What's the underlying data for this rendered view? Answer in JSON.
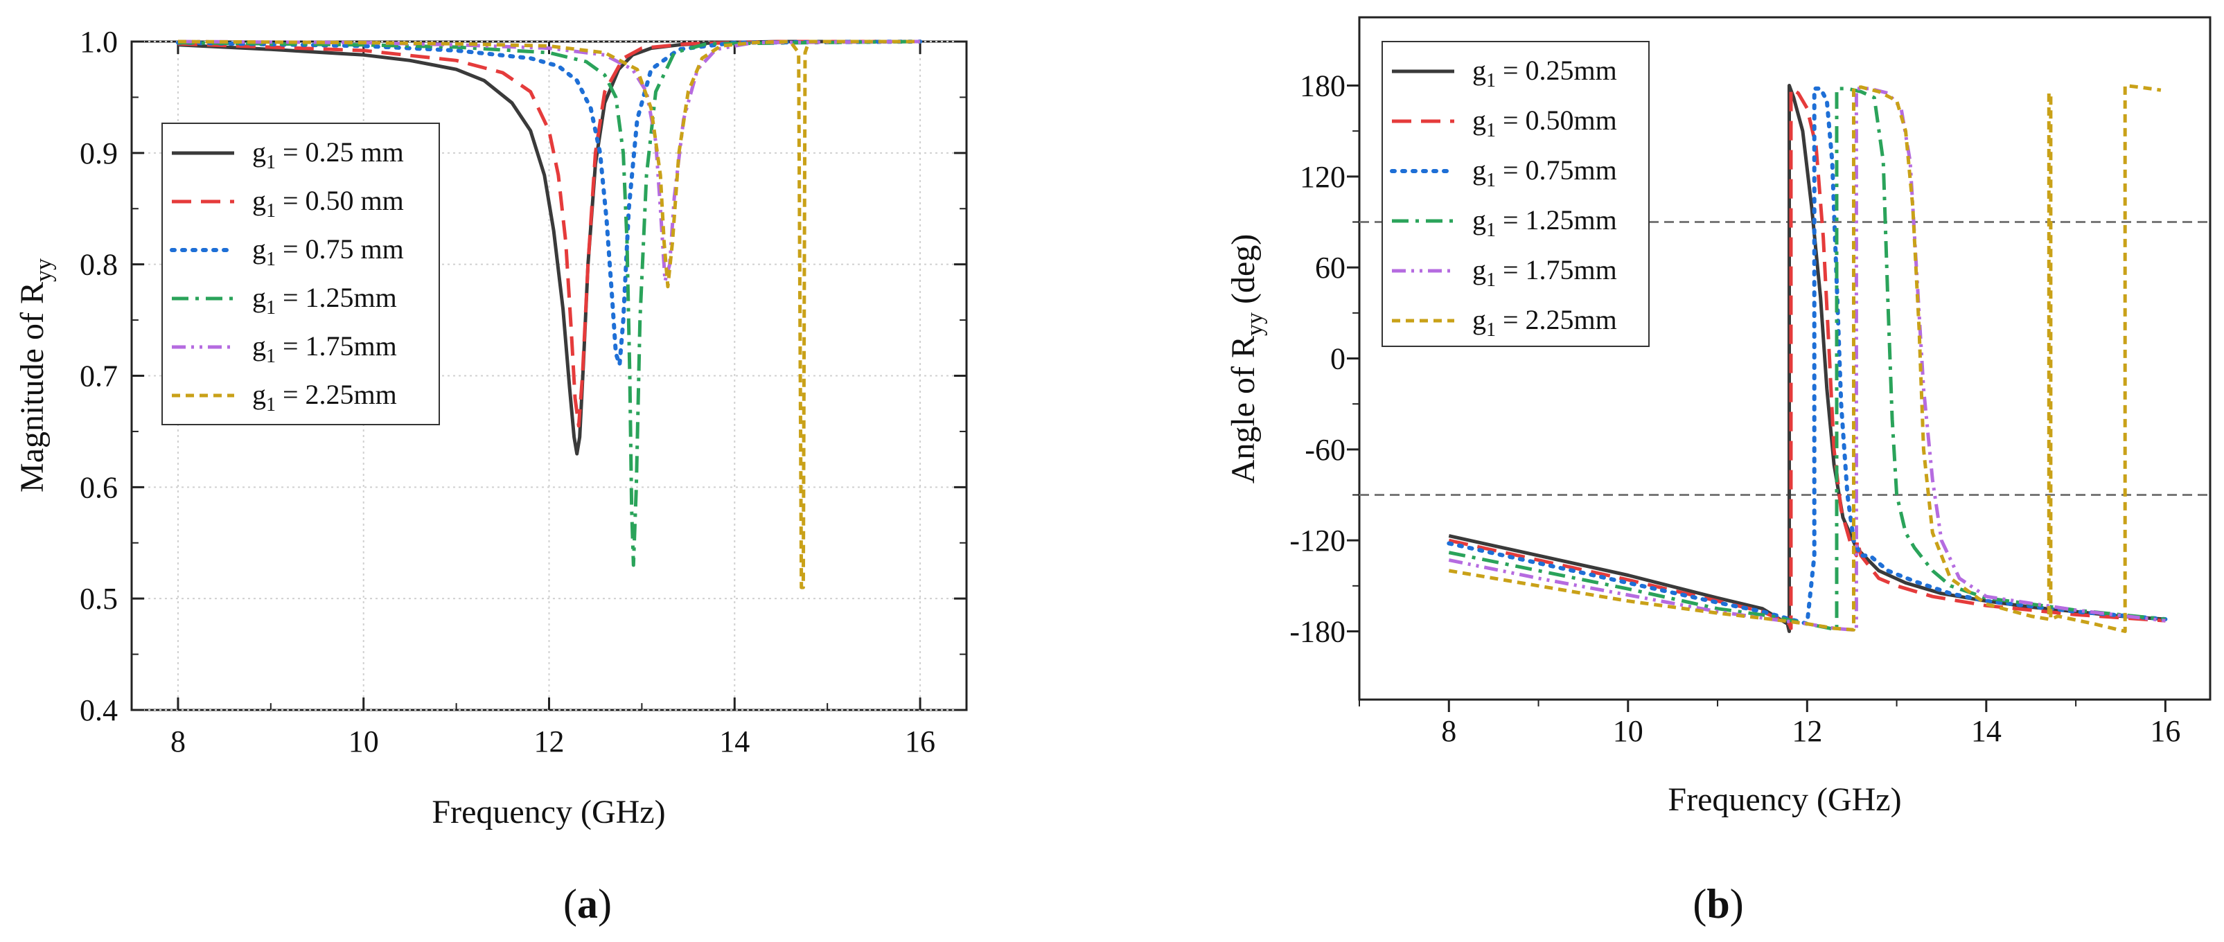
{
  "chart_data": [
    {
      "type": "line",
      "panel_label": "a",
      "xlabel": "Frequency (GHz)",
      "ylabel_main": "Magnitude of R",
      "ylabel_sub": "yy",
      "xlim": [
        7.5,
        16.5
      ],
      "ylim": [
        0.4,
        1.0
      ],
      "xticks": [
        8,
        10,
        12,
        14,
        16
      ],
      "yticks": [
        0.4,
        0.5,
        0.6,
        0.7,
        0.8,
        0.9,
        1.0
      ],
      "ytick_labels": [
        "0.4",
        "0.5",
        "0.6",
        "0.7",
        "0.8",
        "0.9",
        "1.0"
      ],
      "grid": true,
      "legend_position": "center-left",
      "series": [
        {
          "name": "g1 = 0.25 mm",
          "legend_main": "g",
          "legend_sub": "1",
          "legend_rest": " = 0.25 mm",
          "color": "#3a3a3a",
          "style": "solid",
          "x": [
            8,
            9,
            10,
            10.5,
            11,
            11.3,
            11.6,
            11.8,
            11.95,
            12.05,
            12.15,
            12.22,
            12.27,
            12.3,
            12.33,
            12.37,
            12.42,
            12.5,
            12.6,
            12.75,
            12.9,
            13.1,
            13.4,
            13.8,
            14.5,
            16
          ],
          "y": [
            0.997,
            0.993,
            0.988,
            0.983,
            0.975,
            0.965,
            0.945,
            0.92,
            0.88,
            0.83,
            0.76,
            0.69,
            0.645,
            0.63,
            0.645,
            0.71,
            0.8,
            0.89,
            0.945,
            0.975,
            0.988,
            0.994,
            0.997,
            0.999,
            1.0,
            1.0
          ]
        },
        {
          "name": "g1 = 0.50 mm",
          "legend_main": "g",
          "legend_sub": "1",
          "legend_rest": " = 0.50 mm",
          "color": "#e53b3b",
          "style": "dash",
          "x": [
            8,
            10,
            11,
            11.5,
            11.8,
            12.0,
            12.1,
            12.18,
            12.24,
            12.28,
            12.32,
            12.36,
            12.42,
            12.5,
            12.6,
            12.8,
            13.0,
            13.5,
            14.5,
            16
          ],
          "y": [
            0.998,
            0.992,
            0.983,
            0.972,
            0.955,
            0.92,
            0.88,
            0.82,
            0.74,
            0.68,
            0.655,
            0.7,
            0.8,
            0.9,
            0.955,
            0.985,
            0.994,
            0.998,
            1.0,
            1.0
          ]
        },
        {
          "name": "g1 = 0.75 mm",
          "legend_main": "g",
          "legend_sub": "1",
          "legend_rest": " = 0.75 mm",
          "color": "#1e6fd6",
          "style": "dot",
          "x": [
            8,
            10,
            11,
            11.8,
            12.1,
            12.3,
            12.45,
            12.55,
            12.62,
            12.68,
            12.72,
            12.76,
            12.8,
            12.86,
            12.95,
            13.1,
            13.4,
            14,
            16
          ],
          "y": [
            0.999,
            0.996,
            0.992,
            0.985,
            0.978,
            0.965,
            0.94,
            0.9,
            0.84,
            0.77,
            0.72,
            0.71,
            0.75,
            0.85,
            0.93,
            0.975,
            0.993,
            0.999,
            1.0
          ]
        },
        {
          "name": "g1 = 1.25mm",
          "legend_main": "g",
          "legend_sub": "1",
          "legend_rest": " = 1.25mm",
          "color": "#2aa35a",
          "style": "dashdot",
          "x": [
            8,
            10,
            11,
            12,
            12.4,
            12.6,
            12.72,
            12.8,
            12.84,
            12.87,
            12.89,
            12.91,
            12.94,
            12.98,
            13.05,
            13.15,
            13.35,
            13.7,
            16
          ],
          "y": [
            0.999,
            0.997,
            0.995,
            0.99,
            0.982,
            0.97,
            0.95,
            0.9,
            0.82,
            0.7,
            0.58,
            0.53,
            0.6,
            0.75,
            0.88,
            0.955,
            0.99,
            0.998,
            1.0
          ]
        },
        {
          "name": "g1 = 1.75mm",
          "legend_main": "g",
          "legend_sub": "1",
          "legend_rest": " = 1.75mm",
          "color": "#b56be0",
          "style": "dashdotdot",
          "x": [
            8,
            10,
            11,
            12,
            12.6,
            12.9,
            13.05,
            13.15,
            13.2,
            13.25,
            13.3,
            13.35,
            13.45,
            13.6,
            13.8,
            14.2,
            16
          ],
          "y": [
            1.0,
            0.999,
            0.997,
            0.994,
            0.988,
            0.975,
            0.955,
            0.91,
            0.85,
            0.785,
            0.8,
            0.86,
            0.93,
            0.975,
            0.993,
            0.999,
            1.0
          ]
        },
        {
          "name": "g1 = 2.25mm",
          "legend_main": "g",
          "legend_sub": "1",
          "legend_rest": " = 2.25mm",
          "color": "#c9a118",
          "style": "shortdash",
          "x": [
            8,
            10,
            11,
            12,
            12.6,
            12.95,
            13.1,
            13.2,
            13.24,
            13.28,
            13.33,
            13.4,
            13.5,
            13.65,
            13.85,
            14.2,
            14.6,
            14.69,
            14.72,
            14.74,
            14.76,
            14.8,
            15.2,
            16
          ],
          "y": [
            1.0,
            0.999,
            0.998,
            0.996,
            0.99,
            0.975,
            0.94,
            0.88,
            0.82,
            0.78,
            0.82,
            0.9,
            0.955,
            0.985,
            0.996,
            0.999,
            1.0,
            0.99,
            0.51,
            0.51,
            0.99,
            1.0,
            1.0,
            1.0
          ]
        }
      ]
    },
    {
      "type": "line",
      "panel_label": "b",
      "xlabel": "Frequency (GHz)",
      "ylabel_main": "Angle of R",
      "ylabel_sub": "yy",
      "ylabel_tail": " (deg)",
      "xlim": [
        7,
        16.5
      ],
      "ylim": [
        -225,
        225
      ],
      "xticks": [
        8,
        10,
        12,
        14,
        16
      ],
      "yticks": [
        -180,
        -120,
        -60,
        0,
        60,
        120,
        180
      ],
      "ytick_labels": [
        "-180",
        "-120",
        "-60",
        "0",
        "60",
        "120",
        "180"
      ],
      "reference_lines": [
        90,
        -90
      ],
      "grid": false,
      "legend_position": "top-left",
      "series": [
        {
          "name": "g1 = 0.25mm",
          "legend_main": "g",
          "legend_sub": "1",
          "legend_rest": " = 0.25mm",
          "color": "#3a3a3a",
          "style": "solid",
          "x": [
            8,
            9,
            10,
            11,
            11.5,
            11.78,
            11.8,
            11.8,
            11.85,
            11.95,
            12.05,
            12.15,
            12.22,
            12.3,
            12.4,
            12.55,
            12.8,
            13.1,
            13.5,
            14,
            14.5,
            15,
            15.5,
            16
          ],
          "y": [
            -117,
            -130,
            -143,
            -158,
            -165,
            -175,
            -180,
            180,
            172,
            150,
            100,
            40,
            -20,
            -70,
            -105,
            -125,
            -140,
            -148,
            -155,
            -160,
            -164,
            -167,
            -170,
            -172
          ]
        },
        {
          "name": "g1 = 0.50mm",
          "legend_main": "g",
          "legend_sub": "1",
          "legend_rest": " = 0.50mm",
          "color": "#e53b3b",
          "style": "dash",
          "x": [
            8,
            9,
            10,
            11,
            11.5,
            11.8,
            11.82,
            11.82,
            11.9,
            12.0,
            12.1,
            12.18,
            12.25,
            12.3,
            12.38,
            12.5,
            12.55,
            12.56,
            12.6,
            12.8,
            13.0,
            13.4,
            14,
            15,
            16
          ],
          "y": [
            -120,
            -133,
            -146,
            -160,
            -167,
            -175,
            -178,
            178,
            175,
            165,
            140,
            80,
            0,
            -60,
            -100,
            -125,
            -130,
            -120,
            -130,
            -145,
            -150,
            -157,
            -163,
            -169,
            -173
          ]
        },
        {
          "name": "g1 = 0.75mm",
          "legend_main": "g",
          "legend_sub": "1",
          "legend_rest": " = 0.75mm",
          "color": "#1e6fd6",
          "style": "dot",
          "x": [
            8,
            9,
            10,
            11,
            11.5,
            12.0,
            12.08,
            12.08,
            12.15,
            12.22,
            12.28,
            12.33,
            12.38,
            12.45,
            12.52,
            12.6,
            12.7,
            12.9,
            13.2,
            13.6,
            14,
            15,
            16
          ],
          "y": [
            -122,
            -135,
            -148,
            -161,
            -167,
            -175,
            -130,
            178,
            178,
            170,
            130,
            50,
            -30,
            -90,
            -120,
            -130,
            -130,
            -140,
            -147,
            -155,
            -160,
            -167,
            -172
          ]
        },
        {
          "name": "g1 = 1.25mm",
          "legend_main": "g",
          "legend_sub": "1",
          "legend_rest": " = 1.25mm",
          "color": "#2aa35a",
          "style": "dashdot",
          "x": [
            8,
            9,
            10,
            11,
            11.6,
            12.0,
            12.25,
            12.33,
            12.33,
            12.45,
            12.6,
            12.75,
            12.85,
            12.9,
            12.95,
            13.0,
            13.1,
            13.2,
            13.4,
            13.6,
            14,
            15,
            16
          ],
          "y": [
            -128,
            -140,
            -152,
            -165,
            -170,
            -175,
            -178,
            -179,
            178,
            178,
            176,
            172,
            130,
            40,
            -40,
            -90,
            -115,
            -125,
            -140,
            -150,
            -158,
            -166,
            -172
          ]
        },
        {
          "name": "g1 = 1.75mm",
          "legend_main": "g",
          "legend_sub": "1",
          "legend_rest": " = 1.75mm",
          "color": "#b56be0",
          "style": "dashdotdot",
          "x": [
            8,
            9,
            10,
            11,
            11.6,
            12.0,
            12.3,
            12.5,
            12.55,
            12.55,
            12.7,
            12.9,
            13.05,
            13.15,
            13.22,
            13.3,
            13.4,
            13.5,
            13.7,
            14,
            15,
            16
          ],
          "y": [
            -133,
            -145,
            -156,
            -167,
            -172,
            -175,
            -178,
            -179,
            -179,
            178,
            178,
            175,
            165,
            130,
            60,
            -20,
            -80,
            -120,
            -145,
            -157,
            -166,
            -173
          ]
        },
        {
          "name": "g1 = 2.25mm",
          "legend_main": "g",
          "legend_sub": "1",
          "legend_rest": " = 2.25mm",
          "color": "#c9a118",
          "style": "shortdash",
          "x": [
            8,
            9,
            10,
            11,
            11.6,
            12.0,
            12.3,
            12.52,
            12.52,
            12.6,
            12.8,
            13.0,
            13.1,
            13.18,
            13.25,
            13.3,
            13.4,
            13.6,
            14,
            14.5,
            14.7,
            14.7,
            14.72,
            14.72,
            14.8,
            15.2,
            15.55,
            15.55,
            15.7,
            15.95
          ],
          "y": [
            -140,
            -150,
            -160,
            -168,
            -172,
            -175,
            -178,
            -179,
            178,
            179,
            176,
            170,
            150,
            100,
            20,
            -60,
            -115,
            -145,
            -162,
            -170,
            -172,
            175,
            175,
            -172,
            -170,
            -175,
            -180,
            180,
            179,
            177
          ]
        }
      ]
    }
  ]
}
